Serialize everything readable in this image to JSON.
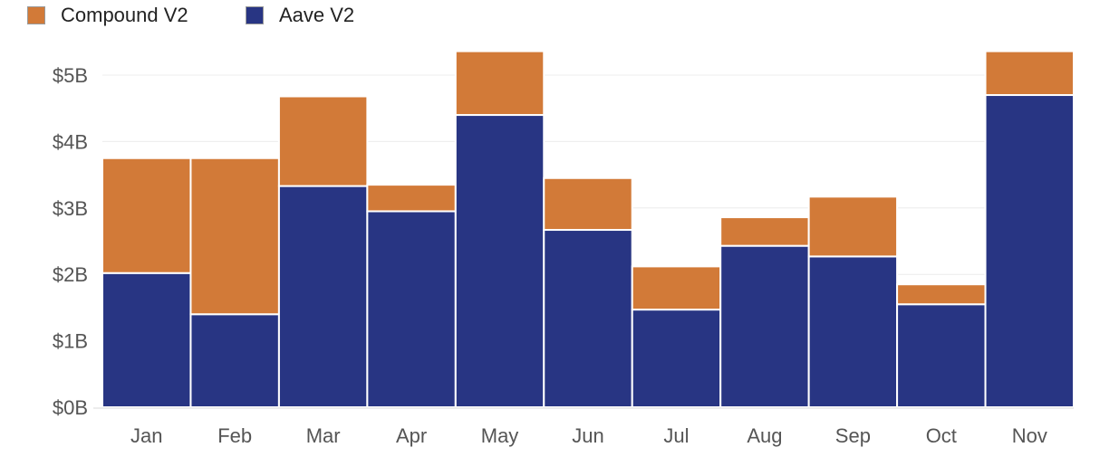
{
  "chart_data": {
    "type": "bar",
    "stacked": true,
    "title": "",
    "xlabel": "",
    "ylabel": "",
    "categories": [
      "Jan",
      "Feb",
      "Mar",
      "Apr",
      "May",
      "Jun",
      "Jul",
      "Aug",
      "Sep",
      "Oct",
      "Nov"
    ],
    "series": [
      {
        "name": "Aave V2",
        "color": "#283583",
        "values": [
          2.02,
          1.4,
          3.33,
          2.95,
          4.4,
          2.67,
          1.47,
          2.43,
          2.27,
          1.55,
          4.7
        ]
      },
      {
        "name": "Compound V2",
        "color": "#d27a38",
        "values": [
          1.73,
          2.35,
          1.35,
          0.4,
          0.96,
          0.78,
          0.65,
          0.43,
          0.9,
          0.3,
          0.66
        ]
      }
    ],
    "ylim": [
      0,
      5.5
    ],
    "yticks": [
      0,
      1,
      2,
      3,
      4,
      5
    ],
    "ytick_labels": [
      "$0B",
      "$1B",
      "$2B",
      "$3B",
      "$4B",
      "$5B"
    ],
    "grid": true,
    "legend_position": "top-left"
  },
  "legend": [
    {
      "label": "Compound V2",
      "color": "#d27a38"
    },
    {
      "label": "Aave V2",
      "color": "#283583"
    }
  ]
}
